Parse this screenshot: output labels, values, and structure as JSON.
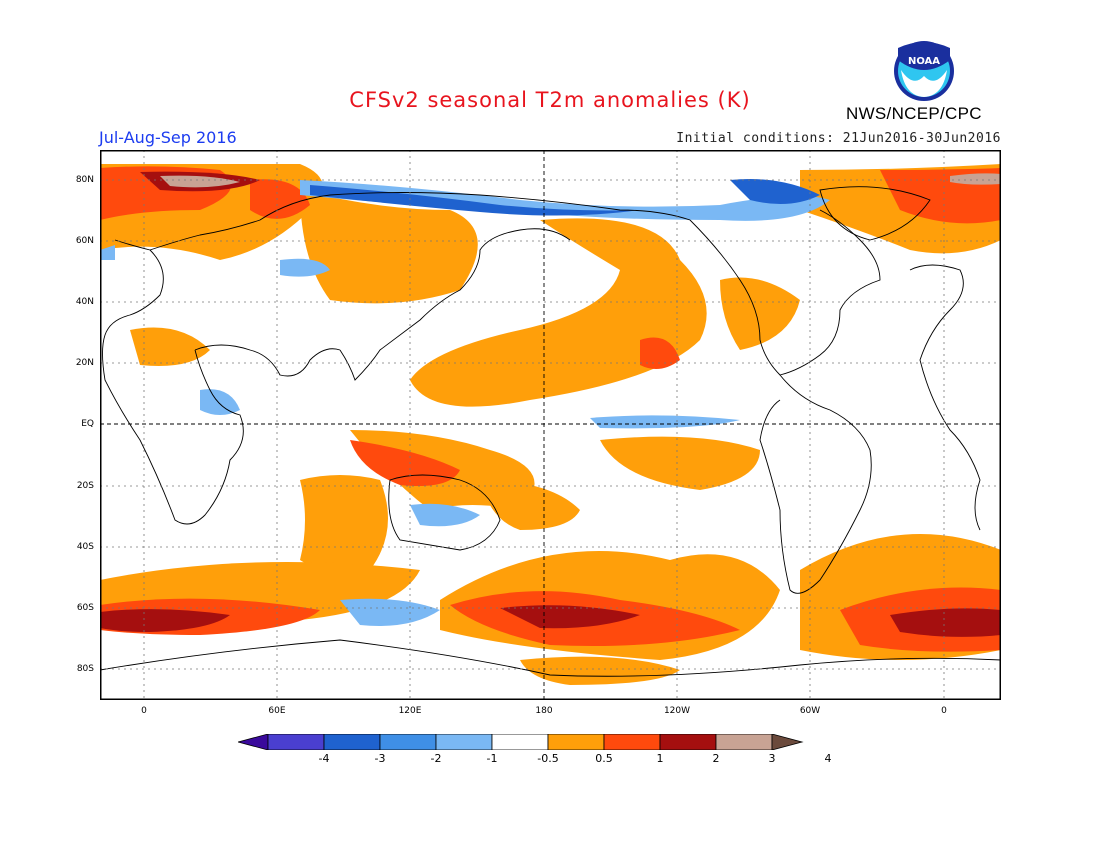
{
  "header": {
    "title": "CFSv2 seasonal T2m anomalies (K)",
    "season": "Jul-Aug-Sep 2016",
    "initial_conditions": "Initial conditions: 21Jun2016-30Jun2016",
    "agency": "NWS/NCEP/CPC",
    "logo_text": "NOAA"
  },
  "map": {
    "lat_labels": [
      "80N",
      "60N",
      "40N",
      "20N",
      "EQ",
      "20S",
      "40S",
      "60S",
      "80S"
    ],
    "lon_labels": [
      "0",
      "60E",
      "120E",
      "180",
      "120W",
      "60W",
      "0"
    ]
  },
  "colorbar": {
    "labels": [
      "-4",
      "-3",
      "-2",
      "-1",
      "-0.5",
      "0.5",
      "1",
      "2",
      "3",
      "4"
    ],
    "colors": [
      "#3a0a9c",
      "#4a3fd0",
      "#1f62cf",
      "#3f8fe6",
      "#7ab8f4",
      "#ffffff",
      "#ff9f0a",
      "#ff4a0d",
      "#a50f0f",
      "#c8a394",
      "#6b4a3c"
    ]
  },
  "colors": {
    "weak_warm": "#ff9f0a",
    "warm": "#ff4a0d",
    "hot": "#a50f0f",
    "very_hot": "#c8a394",
    "extreme_hot": "#6b4a3c",
    "weak_cool": "#7ab8f4",
    "cool": "#3f8fe6",
    "cold": "#1f62cf"
  }
}
